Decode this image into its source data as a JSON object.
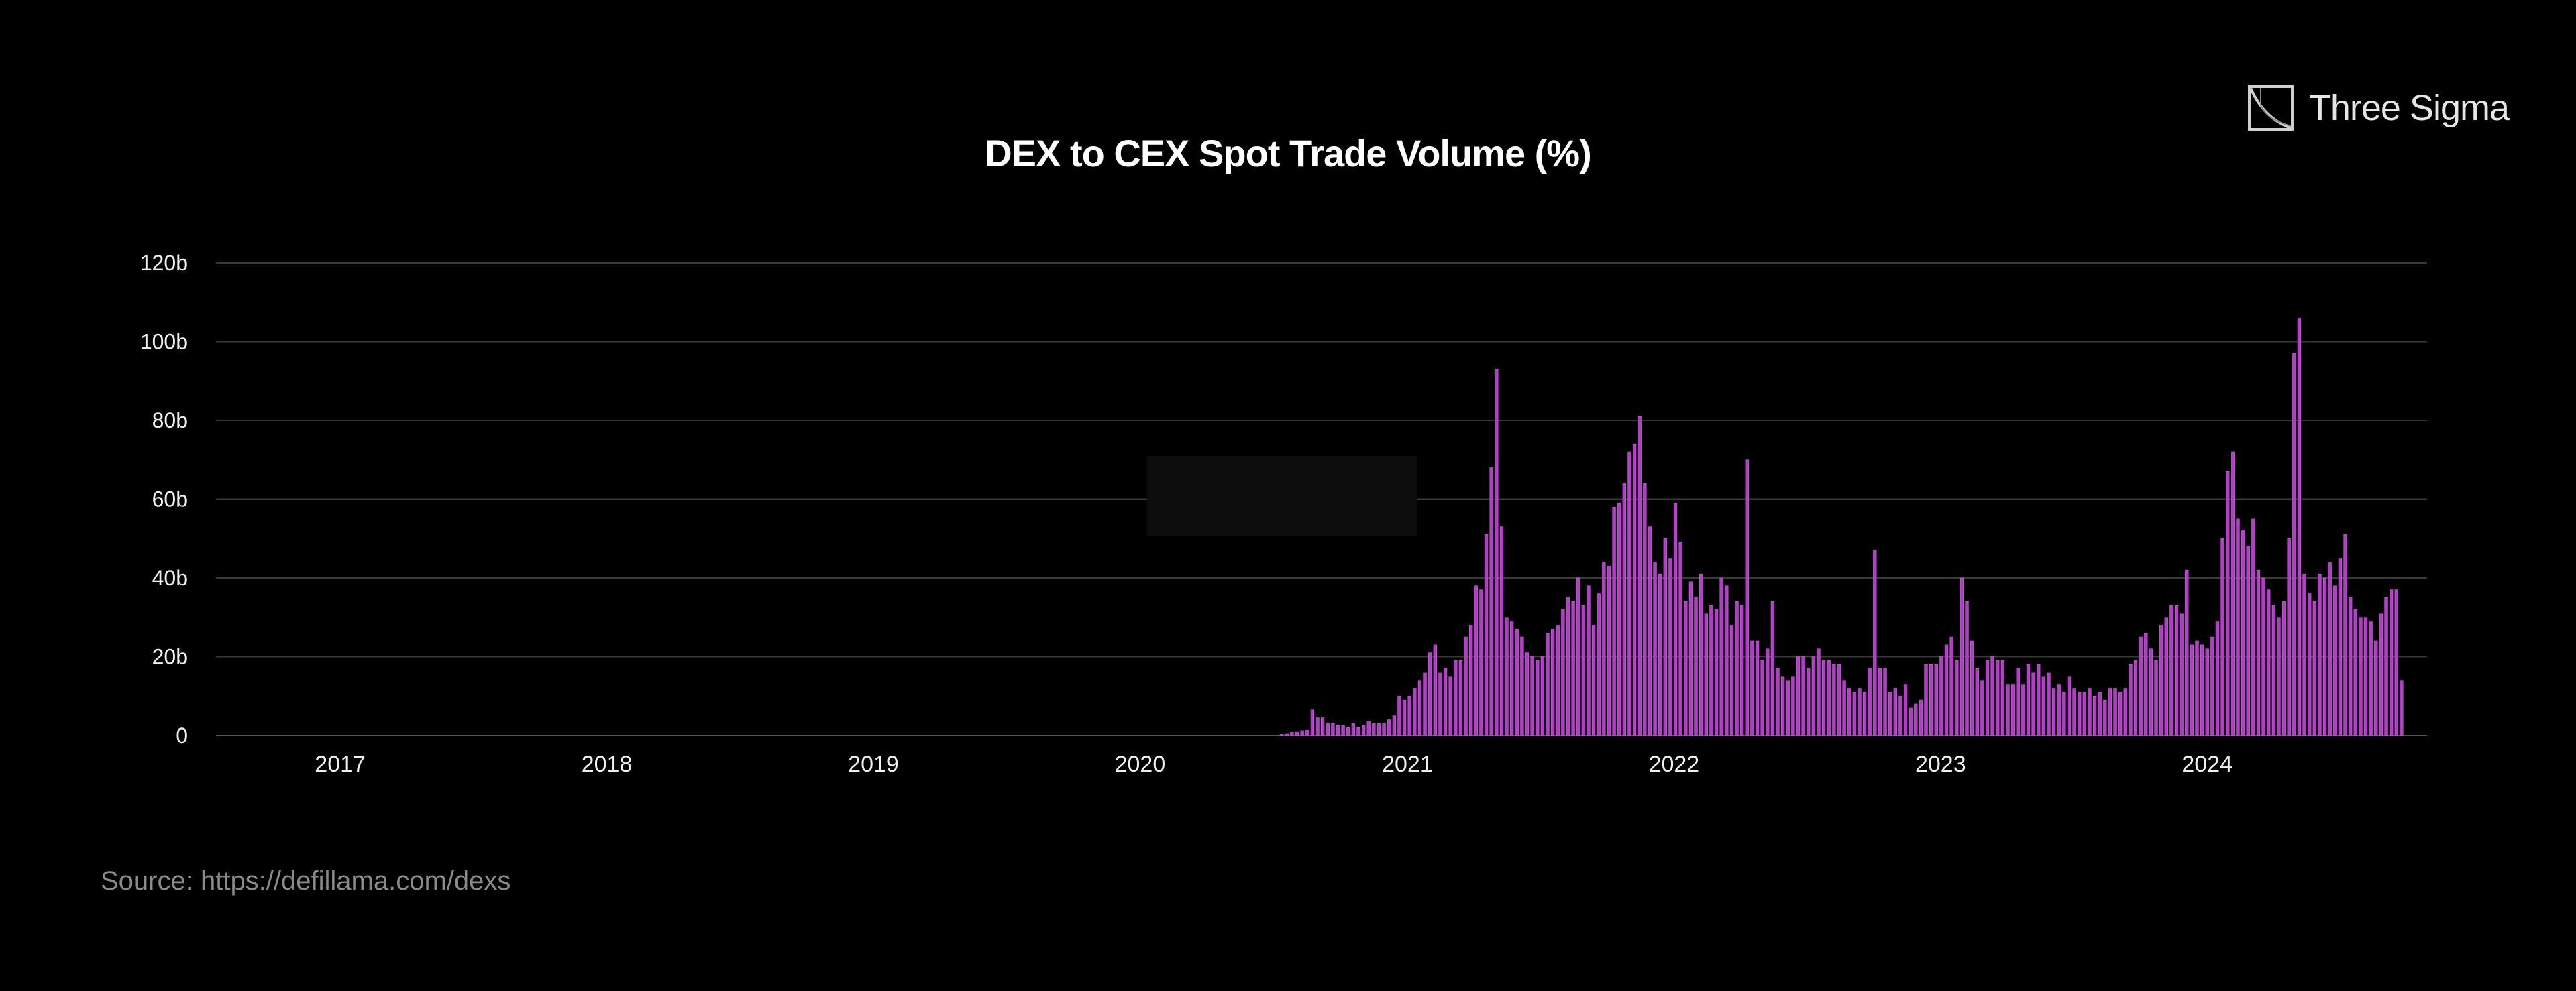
{
  "title": "DEX to CEX Spot Trade Volume (%)",
  "brand": {
    "name": "Three Sigma",
    "logo_icon": "three-sigma-logo-icon"
  },
  "source": "Source: https://defillama.com/dexs",
  "colors": {
    "bar": "#b13fc6",
    "bar_edge": "#d25ce6",
    "grid": "#3a3a3a",
    "axis_text": "#f0f0f0",
    "background": "#000000"
  },
  "chart_data": {
    "type": "bar",
    "title": "DEX to CEX Spot Trade Volume (%)",
    "xlabel": "",
    "ylabel": "",
    "grid": true,
    "legend": "none",
    "y_ticks": [
      "0",
      "20b",
      "40b",
      "60b",
      "80b",
      "100b",
      "120b"
    ],
    "ylim": [
      0,
      120
    ],
    "y_unit": "billions",
    "x_ticks": [
      "2017",
      "2018",
      "2019",
      "2020",
      "2021",
      "2022",
      "2023",
      "2024"
    ],
    "xlim": [
      "2016-07-15",
      "2024-10-28"
    ],
    "series": [
      {
        "start_date": "2020-07-13",
        "interval_days": 7,
        "values": [
          0.3,
          0.5,
          0.8,
          1,
          1.2,
          1.5,
          6.5,
          4.5,
          4.5,
          3,
          3,
          2.5,
          2.5,
          2,
          3,
          2,
          2.5,
          3.5,
          3,
          3,
          3,
          4,
          5,
          10,
          9,
          10,
          12,
          14,
          16,
          21,
          23,
          16,
          17,
          15,
          19,
          19,
          25,
          28,
          38,
          37,
          51,
          68,
          93,
          53,
          30,
          29,
          27,
          25,
          21,
          20,
          19,
          20,
          26,
          27,
          28,
          32,
          35,
          34,
          40,
          33,
          38,
          28,
          36,
          44,
          43,
          58,
          59,
          64,
          72,
          74,
          81,
          64,
          53,
          44,
          41,
          50,
          45,
          59,
          49,
          34,
          39,
          35,
          41,
          31,
          33,
          32,
          40,
          38,
          28,
          34,
          33,
          70,
          24,
          24,
          19,
          22,
          34,
          17,
          15,
          14,
          15,
          20,
          20,
          17,
          20,
          22,
          19,
          19,
          18,
          18,
          14,
          12,
          11,
          12,
          11,
          17,
          47,
          17,
          17,
          11,
          12,
          10,
          13,
          7,
          8,
          9,
          18,
          18,
          18,
          20,
          23,
          25,
          19,
          40,
          34,
          24,
          17,
          14,
          19,
          20,
          19,
          19,
          13,
          13,
          17,
          13,
          18,
          16,
          18,
          15,
          16,
          12,
          13,
          11,
          15,
          12,
          11,
          11,
          12,
          10,
          11,
          9,
          12,
          12,
          11,
          12,
          18,
          19,
          25,
          26,
          22,
          19,
          28,
          30,
          33,
          33,
          31,
          42,
          23,
          24,
          23,
          22,
          25,
          29,
          50,
          67,
          72,
          55,
          52,
          48,
          55,
          42,
          40,
          37,
          33,
          30,
          34,
          50,
          97,
          106,
          41,
          36,
          34,
          41,
          40,
          44,
          38,
          45,
          51,
          35,
          32,
          30,
          30,
          29,
          24,
          31,
          35,
          37,
          37,
          14
        ]
      }
    ]
  }
}
